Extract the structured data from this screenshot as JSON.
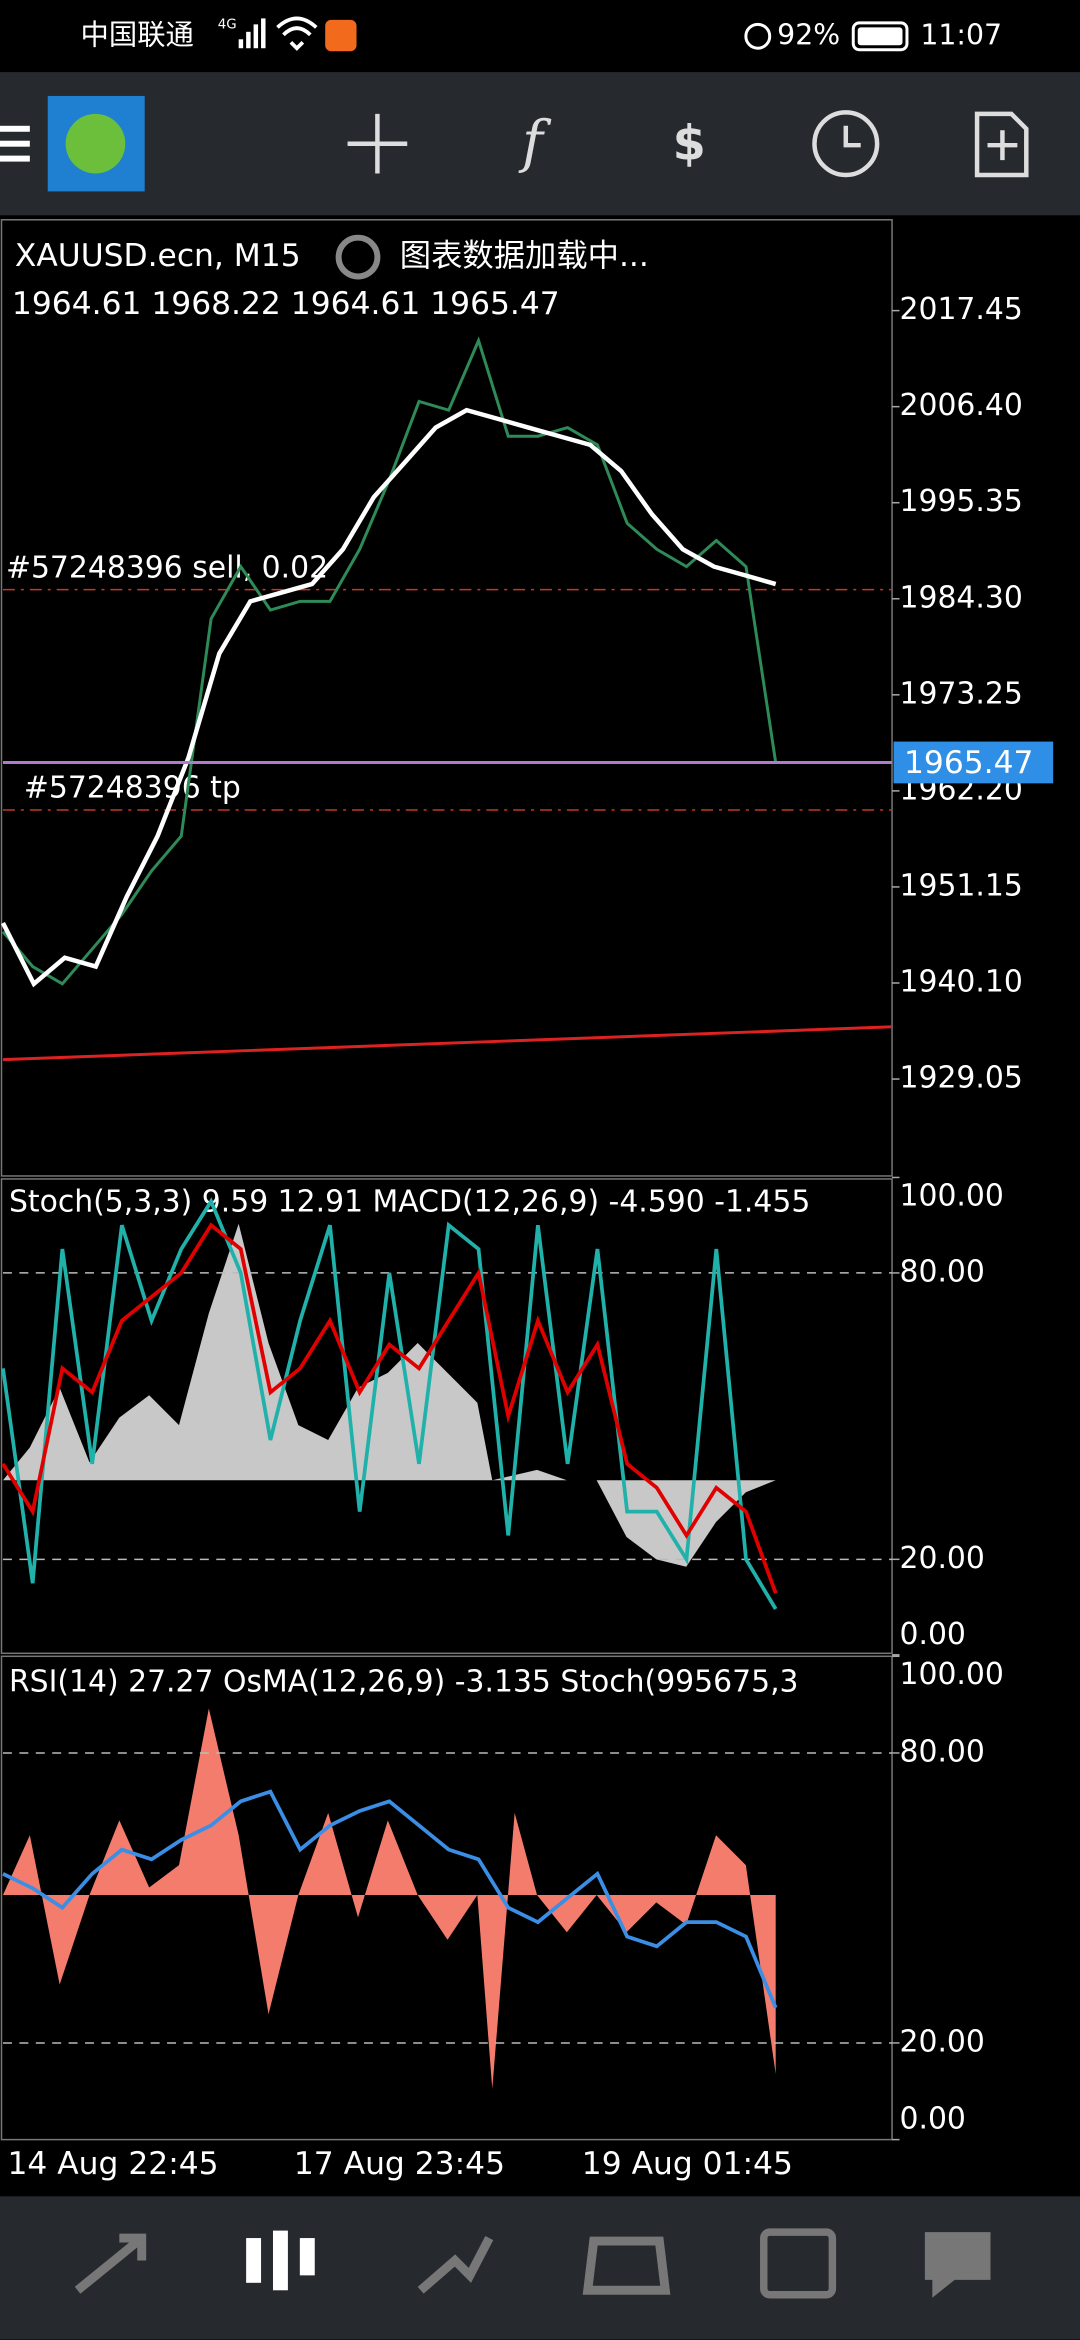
{
  "status_bar": {
    "carrier": "中国联通",
    "network": "4G",
    "battery": "92%",
    "time": "11:07"
  },
  "chart": {
    "symbol": "XAUUSD.ecn, M15",
    "loading": "图表数据加载中...",
    "ohlc": "1964.61 1968.22 1964.61 1965.47",
    "ylim": [
      1917.9,
      2027.9
    ],
    "yticks": [
      2017.45,
      {
        "value": 2006.4,
        "label": "2006.40"
      },
      1995.35,
      {
        "value": 1984.3,
        "label": "1984.30"
      },
      1973.25,
      {
        "value": 1962.2,
        "label": "1962.20"
      },
      1951.15,
      {
        "value": 1940.1,
        "label": "1940.10"
      },
      1929.05
    ],
    "current_price": 1965.47,
    "orders": [
      {
        "label": "#57248396 sell, 0.02",
        "value": 1985.35,
        "color": "#c0392b"
      },
      {
        "label": "#57248396 tp",
        "value": 1960.0,
        "color": "#c0392b"
      }
    ],
    "price": {
      "color": "#2e8b57",
      "values": [
        1946,
        1942,
        1940,
        1944,
        1948,
        1953,
        1957,
        1982,
        1988,
        1983,
        1984,
        1984,
        1990,
        1998,
        2007,
        2006,
        2014,
        2003,
        2003,
        2004,
        2002,
        1993,
        1990,
        1988,
        1991,
        1988,
        1965.47
      ]
    },
    "ma": {
      "color": "#ffffff",
      "values": [
        1947,
        1940,
        1943,
        1942,
        1950,
        1957,
        1966,
        1978,
        1984,
        1985,
        1986,
        1990,
        1996,
        2000,
        2004,
        2006,
        2005,
        2004,
        2003,
        2002,
        1999,
        1994,
        1990,
        1988,
        1987,
        1986
      ]
    }
  },
  "stoch_panel": {
    "label": "Stoch(5,3,3) 9.59 12.91 MACD(12,26,9) -4.590 -1.455",
    "ylim": [
      0,
      100
    ],
    "yticks": [
      {
        "value": 100,
        "label": "100.00"
      },
      {
        "value": 80,
        "label": "80.00"
      },
      {
        "value": 20,
        "label": "20.00"
      },
      {
        "value": 0,
        "label": "0.00"
      }
    ],
    "main": {
      "color": "#20b2aa",
      "values": [
        60,
        15,
        85,
        40,
        90,
        70,
        85,
        95,
        80,
        45,
        70,
        90,
        30,
        80,
        40,
        90,
        85,
        25,
        90,
        40,
        85,
        30,
        30,
        20,
        85,
        20,
        9.59
      ]
    },
    "signal": {
      "color": "#e00000",
      "values": [
        40,
        30,
        60,
        55,
        70,
        75,
        80,
        90,
        85,
        55,
        60,
        70,
        55,
        65,
        60,
        70,
        80,
        50,
        70,
        55,
        65,
        40,
        35,
        25,
        35,
        30,
        12.91
      ]
    }
  },
  "rsi_panel": {
    "label": "RSI(14) 27.27 OsMA(12,26,9) -3.135 Stoch(995675,3",
    "ylim": [
      0,
      100
    ],
    "yticks": [
      {
        "value": 100,
        "label": "100.00"
      },
      {
        "value": 80,
        "label": "80.00"
      },
      {
        "value": 20,
        "label": "20.00"
      },
      {
        "value": 0,
        "label": "0.00"
      }
    ],
    "rsi": {
      "color": "#3a8ee6",
      "values": [
        55,
        52,
        48,
        55,
        60,
        58,
        62,
        65,
        70,
        72,
        60,
        65,
        68,
        70,
        65,
        60,
        58,
        48,
        45,
        50,
        55,
        42,
        40,
        45,
        45,
        42,
        27.27
      ]
    }
  },
  "x_labels": [
    "14 Aug 22:45",
    "17 Aug 23:45",
    "19 Aug 01:45"
  ]
}
